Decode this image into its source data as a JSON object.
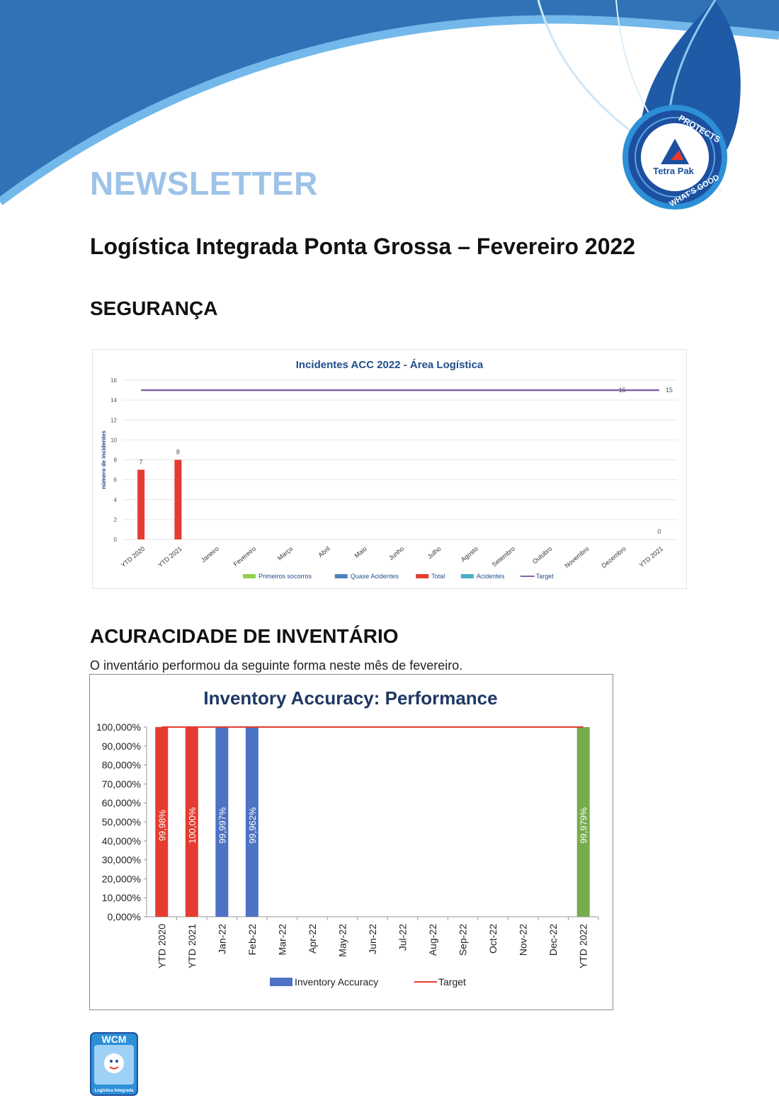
{
  "header": {
    "newsletter_label": "NEWSLETTER",
    "brand": {
      "name": "Tetra Pak",
      "registered": "®",
      "ring_text_top": "PROTECTS",
      "ring_text_bottom": "WHAT'S GOOD"
    }
  },
  "main_title": "Logística Integrada Ponta Grossa – Fevereiro 2022",
  "sections": {
    "safety": {
      "heading": "SEGURANÇA"
    },
    "inventory": {
      "heading": "ACURACIDADE DE INVENTÁRIO",
      "intro": "O inventário performou da seguinte forma neste mês de fevereiro."
    }
  },
  "colors": {
    "header_blue": "#2f73b6",
    "header_light": "#5aa6e0",
    "newsletter": "#9ec2e8",
    "red": "#e53b30",
    "blue_bar": "#4e72c4",
    "green_bar": "#76ac4d",
    "purple_line": "#8064a2",
    "chart_title_blue": "#1f3864"
  },
  "footer": {
    "logo_text": "WCM",
    "logo_subtext": "Logística Integrada"
  },
  "chart_data": [
    {
      "type": "bar",
      "title": "Incidentes ACC 2022 - Área Logística",
      "ylabel": "número de incidentes",
      "xlabel": "",
      "ylim": [
        0,
        16
      ],
      "yticks": [
        "0",
        "2",
        "4",
        "6",
        "8",
        "10",
        "12",
        "14",
        "16"
      ],
      "grid": true,
      "legend_position": "bottom",
      "categories": [
        "YTD 2020",
        "YTD 2021",
        "Janeiro",
        "Fevereiro",
        "Março",
        "Abril",
        "Maio",
        "Junho",
        "Julho",
        "Agosto",
        "Setembro",
        "Outubro",
        "Novembro",
        "Dezembro",
        "YTD 2021"
      ],
      "series": [
        {
          "name": "Primeiros socorros",
          "kind": "bar",
          "color": "#92d050",
          "values": [
            null,
            null,
            null,
            null,
            null,
            null,
            null,
            null,
            null,
            null,
            null,
            null,
            null,
            null,
            null
          ]
        },
        {
          "name": "Quase Acidentes",
          "kind": "bar",
          "color": "#4f81bd",
          "values": [
            null,
            null,
            null,
            null,
            null,
            null,
            null,
            null,
            null,
            null,
            null,
            null,
            null,
            null,
            null
          ]
        },
        {
          "name": "Total",
          "kind": "bar",
          "color": "#e53b30",
          "values": [
            7,
            8,
            null,
            null,
            null,
            null,
            null,
            null,
            null,
            null,
            null,
            null,
            null,
            null,
            0
          ]
        },
        {
          "name": "Acidentes",
          "kind": "bar",
          "color": "#4bacc6",
          "values": [
            null,
            null,
            null,
            null,
            null,
            null,
            null,
            null,
            null,
            null,
            null,
            null,
            null,
            null,
            null
          ]
        },
        {
          "name": "Target",
          "kind": "line",
          "color": "#8064a2",
          "values": [
            15,
            15,
            15,
            15,
            15,
            15,
            15,
            15,
            15,
            15,
            15,
            15,
            15,
            15,
            15
          ]
        }
      ],
      "data_labels": [
        {
          "category_index": 0,
          "text": "7"
        },
        {
          "category_index": 1,
          "text": "8"
        },
        {
          "category_index": 14,
          "text": "0"
        },
        {
          "category_index": 13,
          "text": "15",
          "series": "Target"
        },
        {
          "category_index": 14,
          "text": "15",
          "series": "Target"
        }
      ]
    },
    {
      "type": "bar",
      "title": "Inventory Accuracy: Performance",
      "xlabel": "",
      "ylabel": "",
      "ylim": [
        0,
        100
      ],
      "yticks": [
        "0,000%",
        "10,000%",
        "20,000%",
        "30,000%",
        "40,000%",
        "50,000%",
        "60,000%",
        "70,000%",
        "80,000%",
        "90,000%",
        "100,000%"
      ],
      "grid": false,
      "legend_position": "bottom",
      "categories": [
        "YTD 2020",
        "YTD 2021",
        "Jan-22",
        "Feb-22",
        "Mar-22",
        "Apr-22",
        "May-22",
        "Jun-22",
        "Jul-22",
        "Aug-22",
        "Sep-22",
        "Oct-22",
        "Nov-22",
        "Dec-22",
        "YTD 2022"
      ],
      "series": [
        {
          "name": "Inventory Accuracy",
          "kind": "bar",
          "color": "#4e72c4",
          "values": [
            99.98,
            100.0,
            99.997,
            99.962,
            null,
            null,
            null,
            null,
            null,
            null,
            null,
            null,
            null,
            null,
            99.979
          ],
          "labels": [
            "99,98%",
            "100,00%",
            "99,997%",
            "99,962%",
            "",
            "",
            "",
            "",
            "",
            "",
            "",
            "",
            "",
            "",
            "99,979%"
          ],
          "bar_colors": [
            "#e53b30",
            "#e53b30",
            "#4e72c4",
            "#4e72c4",
            "",
            "",
            "",
            "",
            "",
            "",
            "",
            "",
            "",
            "",
            "#76ac4d"
          ]
        },
        {
          "name": "Target",
          "kind": "line",
          "color": "#e53b30",
          "values": [
            100,
            100,
            100,
            100,
            100,
            100,
            100,
            100,
            100,
            100,
            100,
            100,
            100,
            100,
            100
          ]
        }
      ]
    }
  ]
}
